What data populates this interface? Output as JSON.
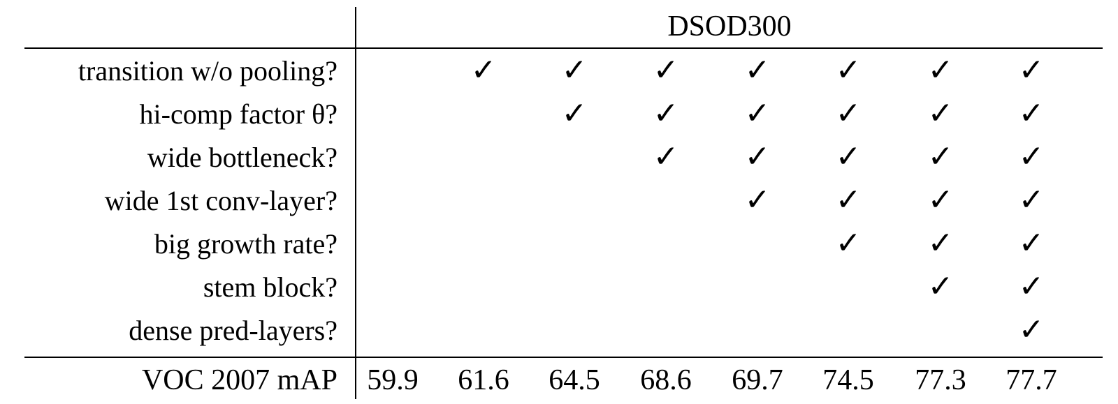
{
  "table": {
    "group_header": "DSOD300",
    "check_symbol": "✓",
    "features": [
      {
        "label": "transition w/o pooling?",
        "checks": [
          false,
          true,
          true,
          true,
          true,
          true,
          true,
          true
        ]
      },
      {
        "label": "hi-comp factor θ?",
        "checks": [
          false,
          false,
          true,
          true,
          true,
          true,
          true,
          true
        ]
      },
      {
        "label": "wide bottleneck?",
        "checks": [
          false,
          false,
          false,
          true,
          true,
          true,
          true,
          true
        ]
      },
      {
        "label": "wide 1st conv-layer?",
        "checks": [
          false,
          false,
          false,
          false,
          true,
          true,
          true,
          true
        ]
      },
      {
        "label": "big growth rate?",
        "checks": [
          false,
          false,
          false,
          false,
          false,
          true,
          true,
          true
        ]
      },
      {
        "label": "stem block?",
        "checks": [
          false,
          false,
          false,
          false,
          false,
          false,
          true,
          true
        ]
      },
      {
        "label": "dense pred-layers?",
        "checks": [
          false,
          false,
          false,
          false,
          false,
          false,
          false,
          true
        ]
      }
    ],
    "metric": {
      "label": "VOC 2007 mAP",
      "values": [
        "59.9",
        "61.6",
        "64.5",
        "68.6",
        "69.7",
        "74.5",
        "77.3",
        "77.7"
      ]
    }
  }
}
